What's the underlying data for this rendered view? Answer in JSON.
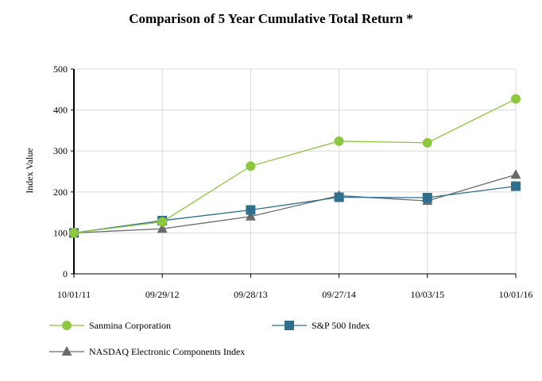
{
  "chart_data": {
    "type": "line",
    "title": "Comparison of 5 Year Cumulative Total Return *",
    "xlabel": "",
    "ylabel": "Index Value",
    "categories": [
      "10/01/11",
      "09/29/12",
      "09/28/13",
      "09/27/14",
      "10/03/15",
      "10/01/16"
    ],
    "ylim": [
      0,
      500
    ],
    "yticks": [
      0,
      100,
      200,
      300,
      400,
      500
    ],
    "grid": true,
    "legend_position": "bottom",
    "series": [
      {
        "name": "Sanmina Corporation",
        "marker": "circle",
        "color": "#8dc63f",
        "values": [
          100,
          127,
          263,
          324,
          320,
          427
        ]
      },
      {
        "name": "S&P 500 Index",
        "marker": "square",
        "color": "#2e6f8e",
        "values": [
          100,
          130,
          156,
          187,
          186,
          214
        ]
      },
      {
        "name": "NASDAQ Electronic Components Index",
        "marker": "triangle",
        "color": "#6b6b6b",
        "values": [
          100,
          110,
          140,
          191,
          178,
          242
        ]
      }
    ]
  }
}
